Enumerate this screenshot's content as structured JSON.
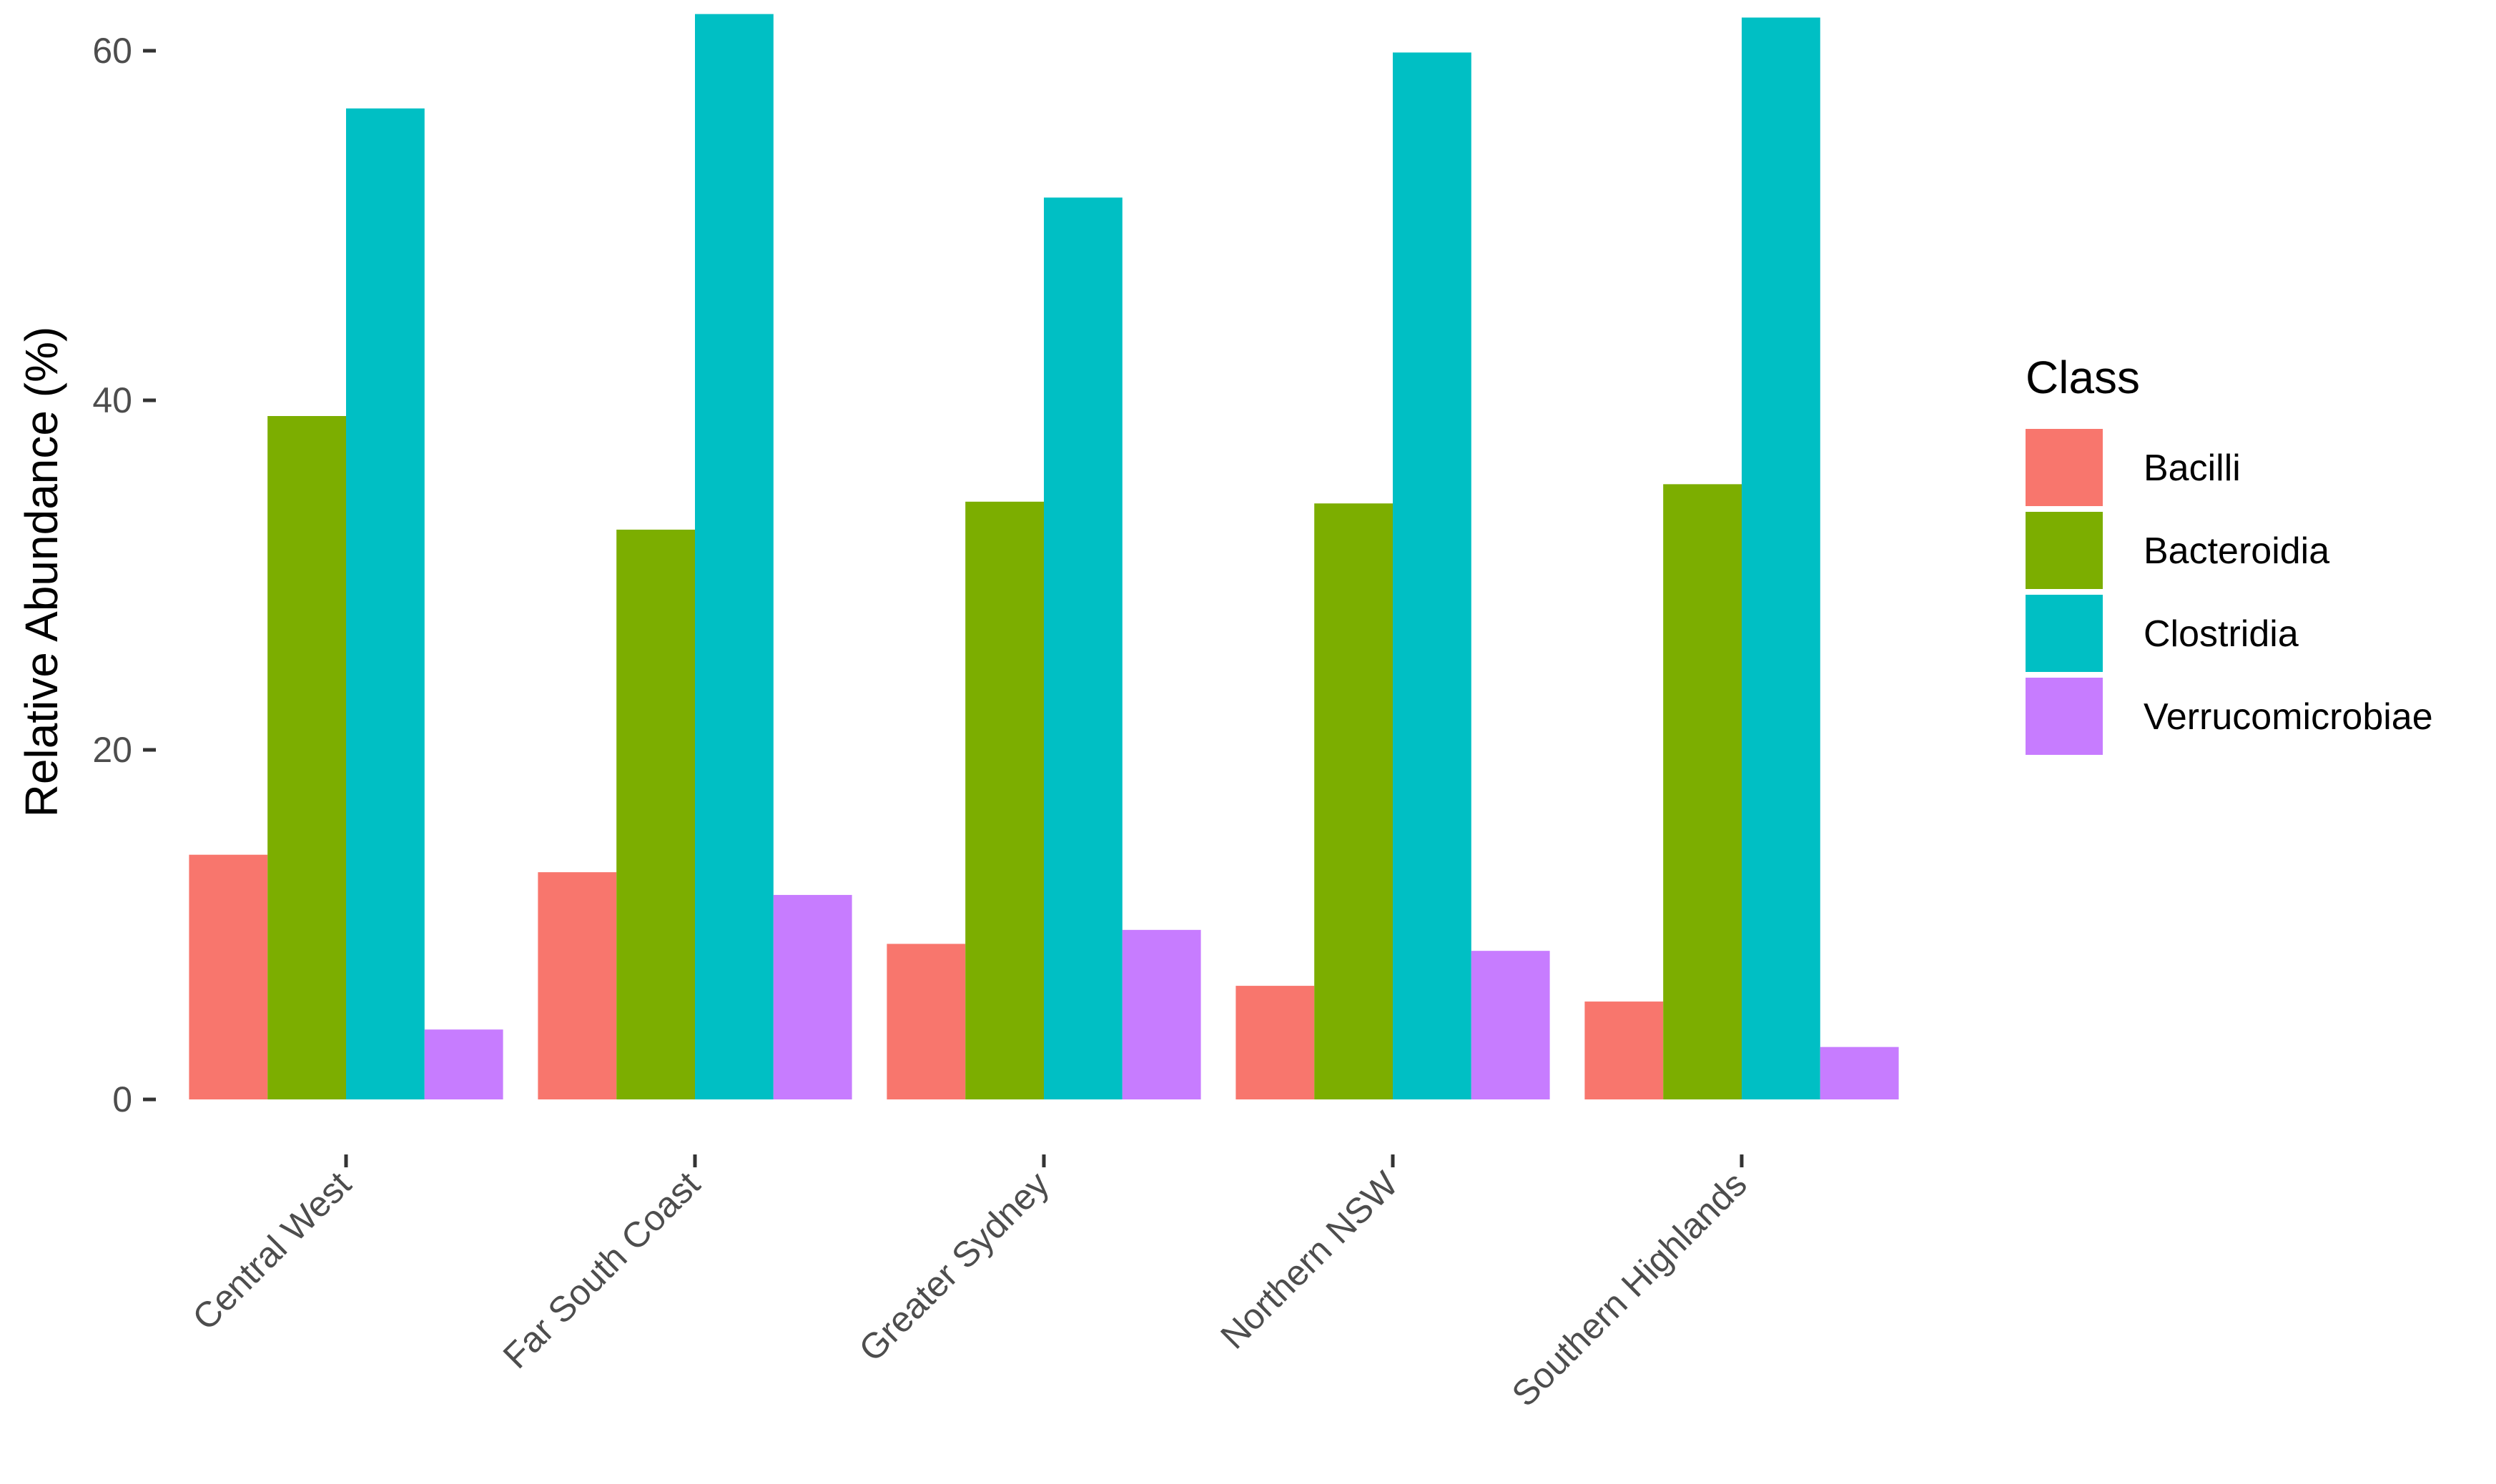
{
  "chart_data": {
    "type": "bar",
    "title": "",
    "xlabel": "",
    "ylabel": "Relative Abundance (%)",
    "ylim": [
      0,
      62
    ],
    "yticks": [
      0,
      20,
      40,
      60
    ],
    "grid": false,
    "legend": {
      "title": "Class",
      "position": "right"
    },
    "categories": [
      "Central West",
      "Far South Coast",
      "Greater Sydney",
      "Northern NSW",
      "Southern Highlands"
    ],
    "series": [
      {
        "name": "Bacilli",
        "color": "#F8766D",
        "values": [
          14.0,
          13.0,
          8.9,
          6.5,
          5.6
        ]
      },
      {
        "name": "Bacteroidia",
        "color": "#7CAE00",
        "values": [
          39.1,
          32.6,
          34.2,
          34.1,
          35.2
        ]
      },
      {
        "name": "Clostridia",
        "color": "#00BFC4",
        "values": [
          56.7,
          62.1,
          51.6,
          59.9,
          61.9
        ]
      },
      {
        "name": "Verrucomicrobiae",
        "color": "#C77CFF",
        "values": [
          4.0,
          11.7,
          9.7,
          8.5,
          3.0
        ]
      }
    ]
  }
}
